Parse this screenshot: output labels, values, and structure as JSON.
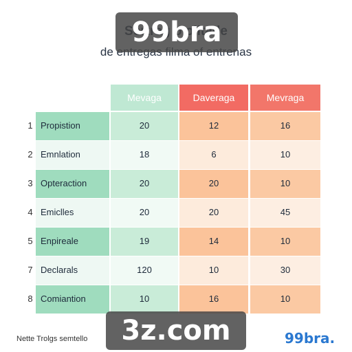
{
  "header": {
    "title": "Sertrag                     o olitade",
    "subtitle": "de entregas filma of entrenas"
  },
  "watermark": {
    "top": "99bra",
    "bottom": "3z.com"
  },
  "footer": {
    "note": "Nette Trolgs semtello",
    "brand": "99bra."
  },
  "chart_data": {
    "type": "table",
    "columns": [
      "Mevaga",
      "Daveraga",
      "Mevraga"
    ],
    "rows": [
      {
        "num": "1",
        "label": "Propistion",
        "values": [
          "20",
          "12",
          "16"
        ]
      },
      {
        "num": "2",
        "label": "Emnlation",
        "values": [
          "18",
          "6",
          "10"
        ]
      },
      {
        "num": "3",
        "label": "Opteraction",
        "values": [
          "20",
          "20",
          "10"
        ]
      },
      {
        "num": "4",
        "label": "Emiclles",
        "values": [
          "20",
          "20",
          "45"
        ]
      },
      {
        "num": "5",
        "label": "Enpireale",
        "values": [
          "19",
          "14",
          "10"
        ]
      },
      {
        "num": "7",
        "label": "Declarals",
        "values": [
          "120",
          "10",
          "30"
        ]
      },
      {
        "num": "8",
        "label": "Comiantion",
        "values": [
          "10",
          "16",
          "10"
        ]
      }
    ],
    "colors": {
      "header": [
        "#bfe8d3",
        "#f26b63",
        "#f2766a"
      ],
      "label_col": [
        "#9fdcbe",
        "#eef8f3"
      ],
      "col1": [
        "#c9ecd8",
        "#f1faf5"
      ],
      "col2": [
        "#fbc39a",
        "#fdebdc"
      ],
      "col3": [
        "#fbc9a3",
        "#fdeee2"
      ]
    }
  }
}
